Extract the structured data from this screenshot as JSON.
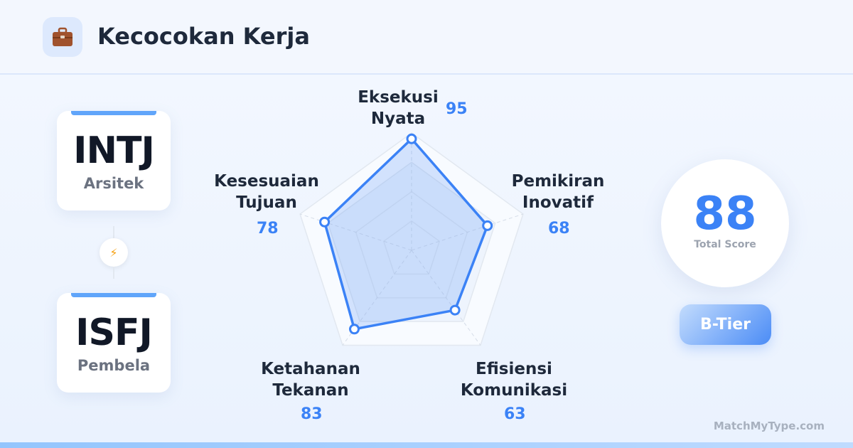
{
  "header": {
    "title": "Kecocokan Kerja",
    "icon": "briefcase-icon"
  },
  "types": [
    {
      "code": "INTJ",
      "name": "Arsitek"
    },
    {
      "code": "ISFJ",
      "name": "Pembela"
    }
  ],
  "connector_icon": "lightning-icon",
  "connector_glyph": "⚡",
  "chart_data": {
    "type": "radar",
    "max": 100,
    "axes": [
      {
        "label1": "Eksekusi",
        "label2": "Nyata",
        "value": 95
      },
      {
        "label1": "Pemikiran",
        "label2": "Inovatif",
        "value": 68
      },
      {
        "label1": "Efisiensi",
        "label2": "Komunikasi",
        "value": 63
      },
      {
        "label1": "Ketahanan",
        "label2": "Tekanan",
        "value": 83
      },
      {
        "label1": "Kesesuaian",
        "label2": "Tujuan",
        "value": 78
      }
    ],
    "series_color": "#3b82f6"
  },
  "score": {
    "value": "88",
    "caption": "Total Score"
  },
  "tier": "B-Tier",
  "brand": "MatchMyType.com"
}
